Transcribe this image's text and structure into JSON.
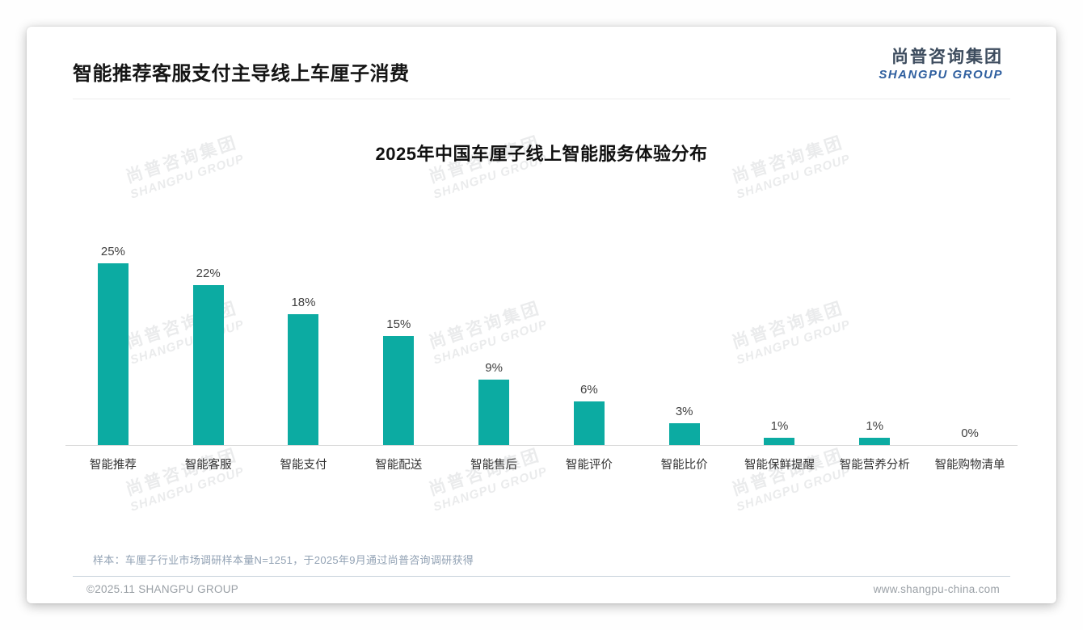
{
  "page": {
    "title": "智能推荐客服支付主导线上车厘子消费",
    "logo": {
      "cn": "尚普咨询集团",
      "en": "SHANGPU GROUP"
    },
    "note": "样本：车厘子行业市场调研样本量N=1251，于2025年9月通过尚普咨询调研获得",
    "footer": {
      "left": "©2025.11 SHANGPU GROUP",
      "right": "www.shangpu-china.com"
    },
    "watermark": {
      "cn": "尚普咨询集团",
      "en": "SHANGPU GROUP"
    }
  },
  "chart_data": {
    "type": "bar",
    "title": "2025年中国车厘子线上智能服务体验分布",
    "categories": [
      "智能推荐",
      "智能客服",
      "智能支付",
      "智能配送",
      "智能售后",
      "智能评价",
      "智能比价",
      "智能保鲜提醒",
      "智能营养分析",
      "智能购物清单"
    ],
    "values": [
      25,
      22,
      18,
      15,
      9,
      6,
      3,
      1,
      1,
      0
    ],
    "unit": "%",
    "bar_color": "#0caba2",
    "value_label_color": "#404040",
    "ylim": [
      0,
      25
    ],
    "grid": false,
    "legend": false,
    "xlabel": "",
    "ylabel": ""
  }
}
